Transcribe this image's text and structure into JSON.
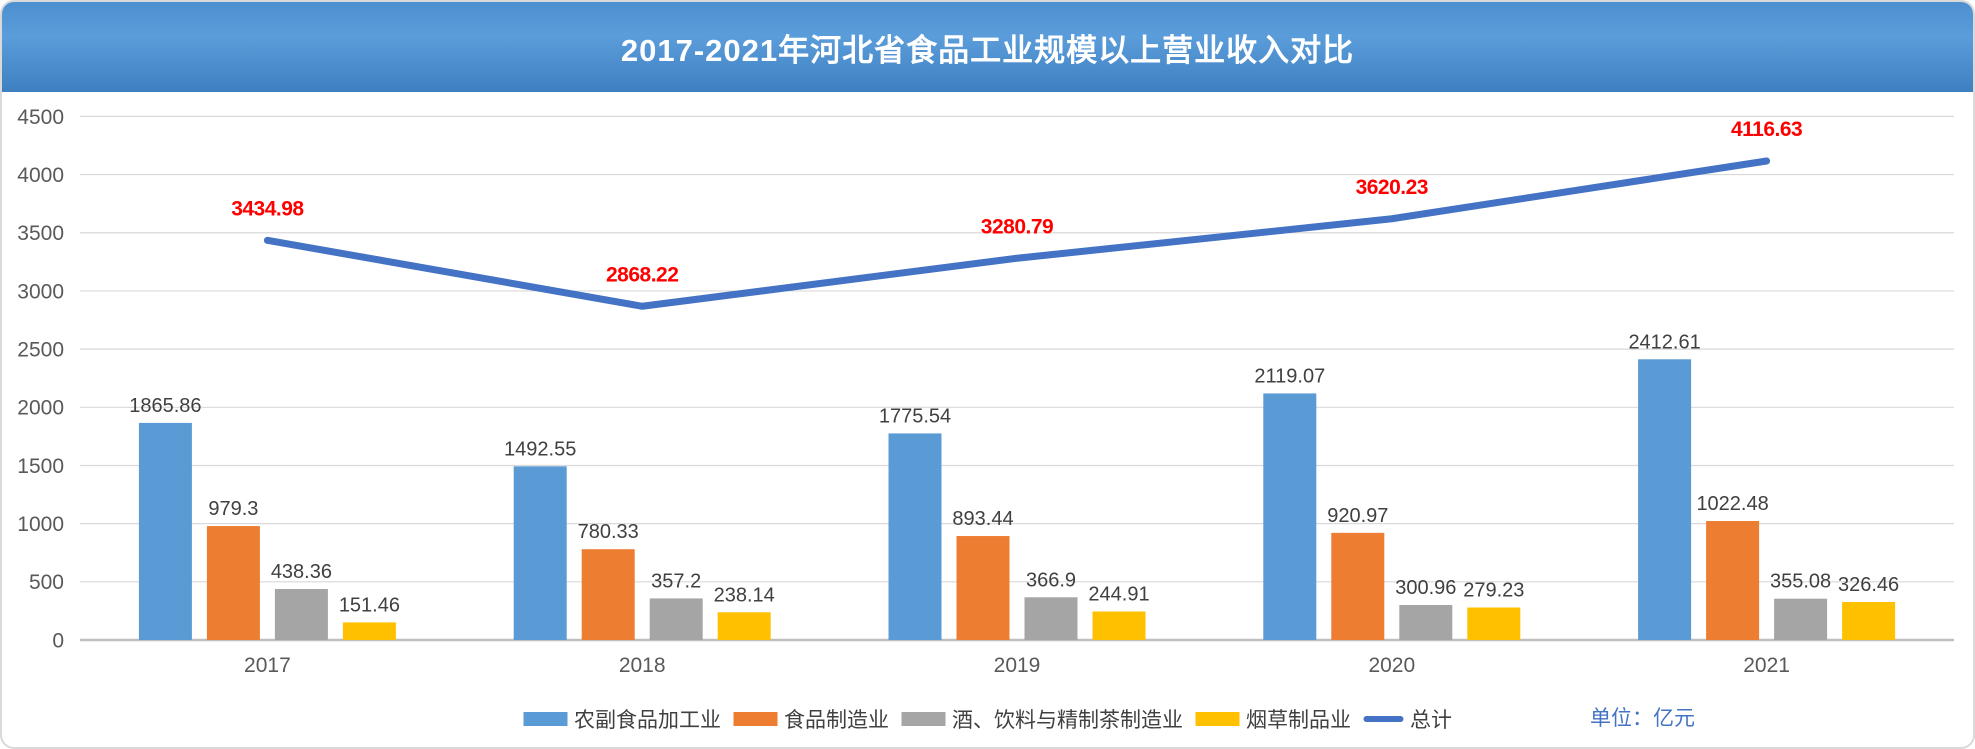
{
  "header": {
    "title": "2017-2021年河北省食品工业规模以上营业收入对比"
  },
  "unit_label": "单位：亿元",
  "colors": {
    "header_gradient_top": "#4C8FD0",
    "header_gradient_bottom": "#3E7FC1",
    "grid_line": "#D9D9D9",
    "axis_line": "#BFBFBF",
    "axis_text": "#595959",
    "bar_value_label": "#404040",
    "line_value_label": "#FF0000",
    "unit_text": "#4472C4",
    "card_border": "#D9D9D9"
  },
  "chart_data": {
    "type": "combo-bar-line",
    "title": "2017-2021年河北省食品工业规模以上营业收入对比",
    "xlabel": "",
    "ylabel": "",
    "unit": "亿元",
    "categories": [
      "2017",
      "2018",
      "2019",
      "2020",
      "2021"
    ],
    "series": [
      {
        "name": "农副食品加工业",
        "type": "bar",
        "color": "#5B9BD5",
        "values": [
          1865.86,
          1492.55,
          1775.54,
          2119.07,
          2412.61
        ]
      },
      {
        "name": "食品制造业",
        "type": "bar",
        "color": "#ED7D31",
        "values": [
          979.3,
          780.33,
          893.44,
          920.97,
          1022.48
        ]
      },
      {
        "name": "酒、饮料与精制茶制造业",
        "type": "bar",
        "color": "#A5A5A5",
        "values": [
          438.36,
          357.2,
          366.9,
          300.96,
          355.08
        ]
      },
      {
        "name": "烟草制品业",
        "type": "bar",
        "color": "#FFC000",
        "values": [
          151.46,
          238.14,
          244.91,
          279.23,
          326.46
        ]
      },
      {
        "name": "总计",
        "type": "line",
        "color": "#4472C4",
        "values": [
          3434.98,
          2868.22,
          3280.79,
          3620.23,
          4116.63
        ]
      }
    ],
    "ylim": [
      0,
      4500
    ],
    "ytick_interval": 500,
    "grid": true,
    "value_labels": true,
    "legend_position": "bottom"
  }
}
